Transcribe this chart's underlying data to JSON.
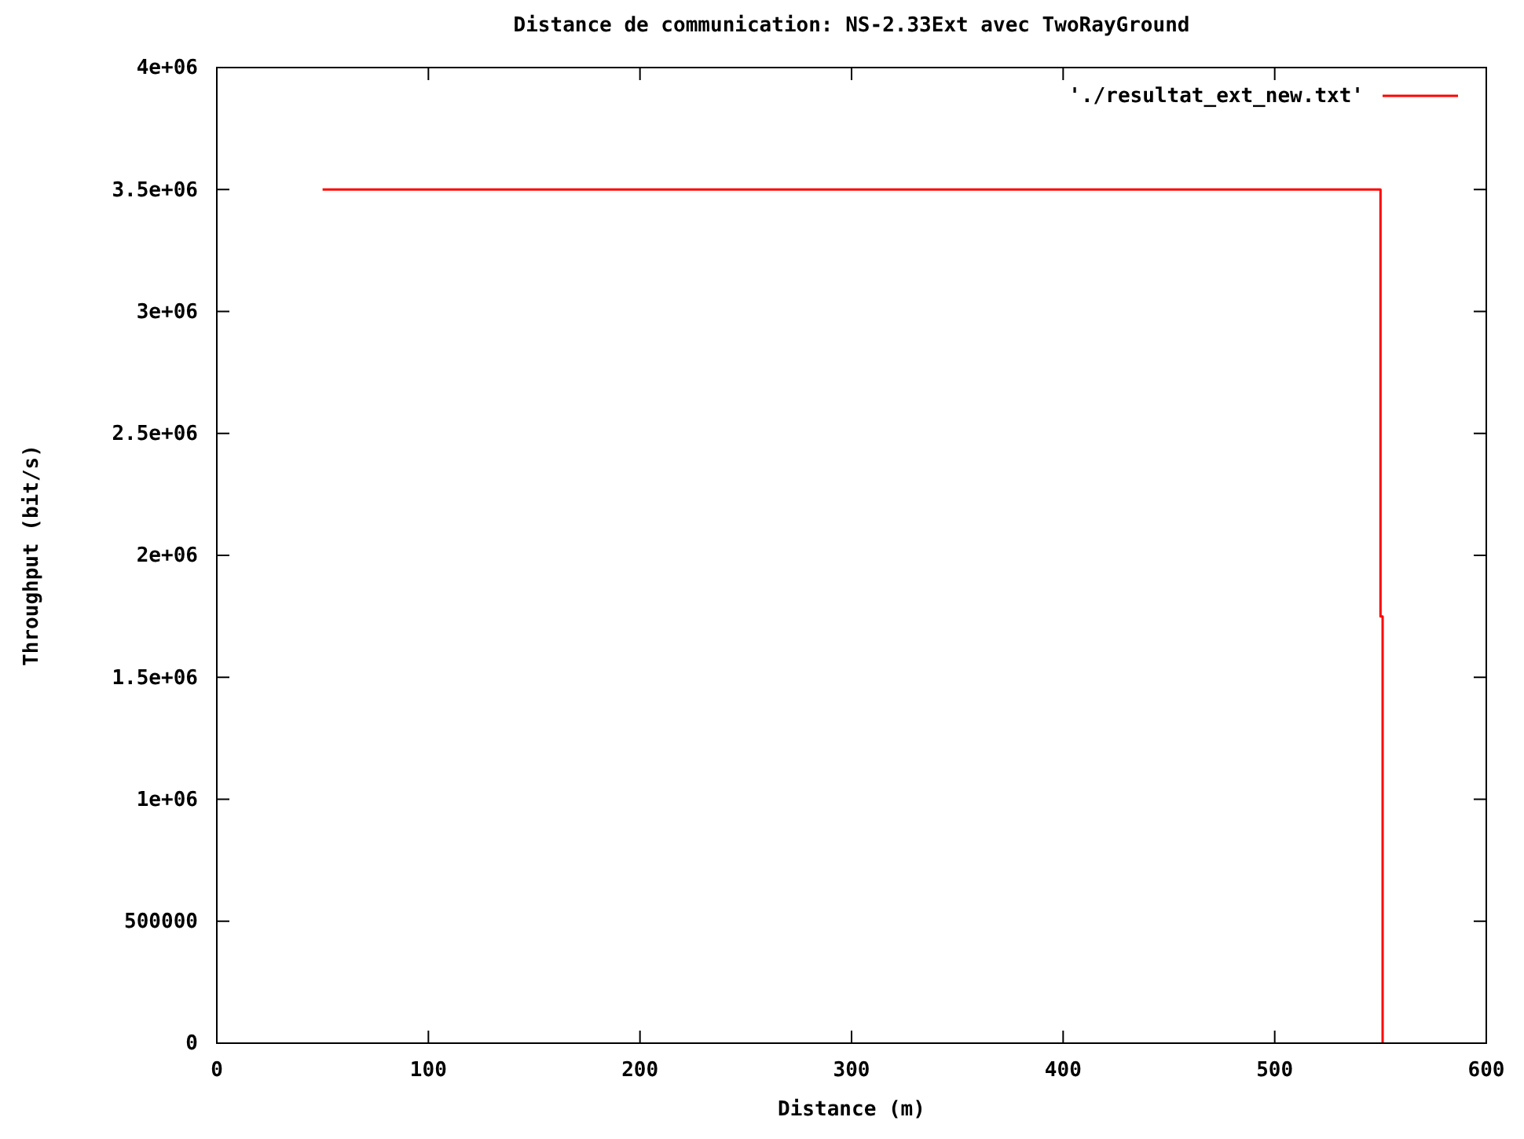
{
  "chart_data": {
    "type": "line",
    "title": "Distance de communication: NS-2.33Ext avec TwoRayGround",
    "xlabel": "Distance (m)",
    "ylabel": "Throughput (bit/s)",
    "xlim": [
      0,
      600
    ],
    "xticks": [
      0,
      100,
      200,
      300,
      400,
      500,
      600
    ],
    "ylim": [
      0,
      4000000
    ],
    "yticks": [
      {
        "value": 0,
        "label": "0"
      },
      {
        "value": 500000,
        "label": "500000"
      },
      {
        "value": 1000000,
        "label": "1e+06"
      },
      {
        "value": 1500000,
        "label": "1.5e+06"
      },
      {
        "value": 2000000,
        "label": "2e+06"
      },
      {
        "value": 2500000,
        "label": "2.5e+06"
      },
      {
        "value": 3000000,
        "label": "3e+06"
      },
      {
        "value": 3500000,
        "label": "3.5e+06"
      },
      {
        "value": 4000000,
        "label": "4e+06"
      }
    ],
    "legend": "top right",
    "grid": false,
    "series": [
      {
        "name": "'./resultat_ext_new.txt'",
        "color": "#ff0000",
        "x": [
          50,
          550,
          550,
          551,
          551
        ],
        "values": [
          3500000,
          3500000,
          1750000,
          1750000,
          0
        ]
      }
    ]
  }
}
